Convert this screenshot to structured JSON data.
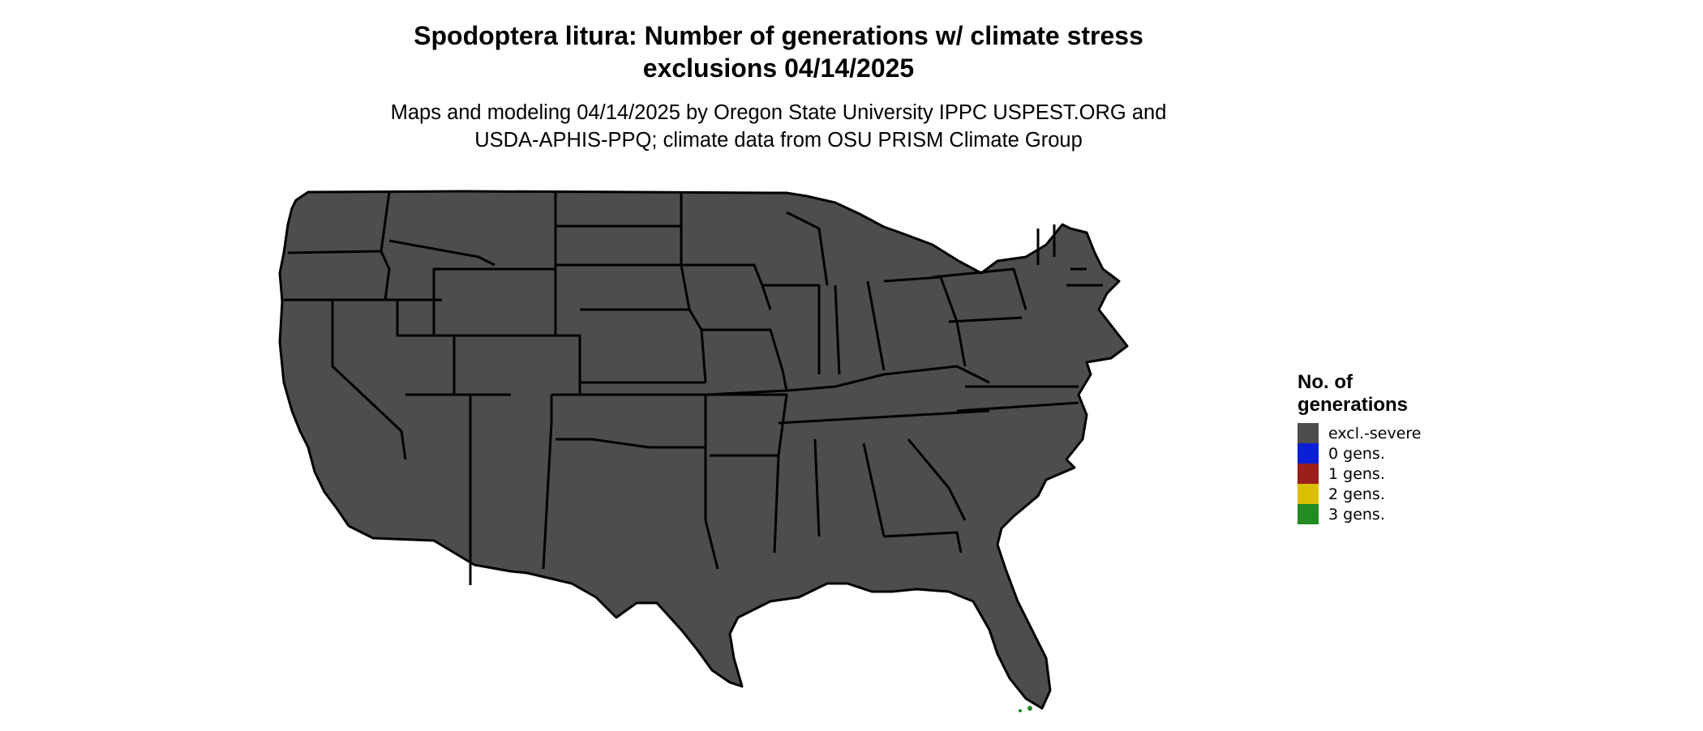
{
  "title_line1": "Spodoptera litura: Number of generations w/ climate stress",
  "title_line2": "exclusions 04/14/2025",
  "subtitle_line1": "Maps and modeling 04/14/2025 by Oregon State University IPPC USPEST.ORG and",
  "subtitle_line2": "USDA-APHIS-PPQ; climate data from OSU PRISM Climate Group",
  "legend": {
    "title_line1": "No. of",
    "title_line2": "generations",
    "items": [
      {
        "label": "excl.-severe",
        "color": "#4d4d4d"
      },
      {
        "label": "0 gens.",
        "color": "#0a1fd6"
      },
      {
        "label": "1 gens.",
        "color": "#9b1f1a"
      },
      {
        "label": "2 gens.",
        "color": "#d8c000"
      },
      {
        "label": "3 gens.",
        "color": "#228b22"
      }
    ]
  },
  "colors": {
    "excluded": "#4d4d4d",
    "zero": "#0a1fd6",
    "one": "#8b1a1a",
    "one_border": "#ff5a1f",
    "two": "#d8b400",
    "three": "#228b22",
    "boundary": "#000000"
  }
}
